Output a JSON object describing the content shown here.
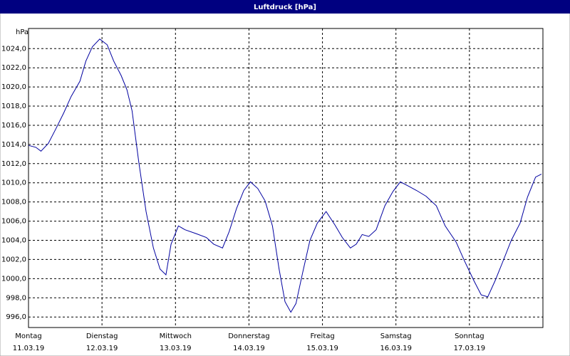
{
  "chart_data": {
    "type": "line",
    "title": "Luftdruck [hPa]",
    "y_label": "hPa",
    "x": [
      0,
      0.1,
      0.17,
      0.27,
      0.37,
      0.48,
      0.58,
      0.7,
      0.78,
      0.87,
      0.97,
      1.07,
      1.16,
      1.26,
      1.34,
      1.41,
      1.5,
      1.6,
      1.7,
      1.79,
      1.87,
      1.94,
      2.04,
      2.13,
      2.28,
      2.42,
      2.52,
      2.64,
      2.73,
      2.83,
      2.93,
      3.02,
      3.12,
      3.22,
      3.32,
      3.41,
      3.49,
      3.57,
      3.64,
      3.73,
      3.83,
      3.93,
      4.05,
      4.17,
      4.27,
      4.38,
      4.46,
      4.54,
      4.63,
      4.73,
      4.85,
      4.96,
      5.06,
      5.16,
      5.28,
      5.41,
      5.55,
      5.67,
      5.82,
      5.93,
      6.06,
      6.16,
      6.25,
      6.35,
      6.45,
      6.57,
      6.69,
      6.79,
      6.9,
      6.98
    ],
    "series": [
      {
        "name": "Luftdruck",
        "color": "#0000a0",
        "values": [
          1013.9,
          1013.7,
          1013.3,
          1014.1,
          1015.6,
          1017.3,
          1019.0,
          1020.6,
          1022.7,
          1024.2,
          1025.0,
          1024.4,
          1022.7,
          1021.2,
          1019.7,
          1017.5,
          1012.2,
          1007.0,
          1003.2,
          1001.0,
          1000.4,
          1003.6,
          1005.5,
          1005.1,
          1004.7,
          1004.3,
          1003.6,
          1003.2,
          1004.9,
          1007.3,
          1009.2,
          1010.1,
          1009.4,
          1008.1,
          1005.5,
          1001.0,
          997.6,
          996.5,
          997.4,
          1000.6,
          1004.0,
          1005.8,
          1007.0,
          1005.6,
          1004.3,
          1003.2,
          1003.6,
          1004.6,
          1004.4,
          1005.1,
          1007.6,
          1009.1,
          1010.1,
          1009.7,
          1009.2,
          1008.6,
          1007.6,
          1005.5,
          1003.8,
          1001.9,
          999.8,
          998.3,
          998.1,
          999.8,
          1001.7,
          1004.0,
          1005.8,
          1008.5,
          1010.6,
          1010.9
        ]
      }
    ],
    "xlim": [
      0,
      7
    ],
    "ylim": [
      994.9,
      1026.1
    ],
    "xticks": [
      {
        "value": 0,
        "label": "Montag"
      },
      {
        "value": 1,
        "label": "Dienstag"
      },
      {
        "value": 2,
        "label": "Mittwoch"
      },
      {
        "value": 3,
        "label": "Donnerstag"
      },
      {
        "value": 4,
        "label": "Freitag"
      },
      {
        "value": 5,
        "label": "Samstag"
      },
      {
        "value": 6,
        "label": "Sonntag"
      }
    ],
    "xtick_dates": [
      "11.03.19",
      "12.03.19",
      "13.03.19",
      "14.03.19",
      "15.03.19",
      "16.03.19",
      "17.03.19"
    ],
    "yticks": [
      {
        "value": 996,
        "label": "996,0"
      },
      {
        "value": 998,
        "label": "998,0"
      },
      {
        "value": 1000,
        "label": "1000,0"
      },
      {
        "value": 1002,
        "label": "1002,0"
      },
      {
        "value": 1004,
        "label": "1004,0"
      },
      {
        "value": 1006,
        "label": "1006,0"
      },
      {
        "value": 1008,
        "label": "1008,0"
      },
      {
        "value": 1010,
        "label": "1010,0"
      },
      {
        "value": 1012,
        "label": "1012,0"
      },
      {
        "value": 1014,
        "label": "1014,0"
      },
      {
        "value": 1016,
        "label": "1016,0"
      },
      {
        "value": 1018,
        "label": "1018,0"
      },
      {
        "value": 1020,
        "label": "1020,0"
      },
      {
        "value": 1022,
        "label": "1022,0"
      },
      {
        "value": 1024,
        "label": "1024,0"
      }
    ],
    "grid": true
  }
}
